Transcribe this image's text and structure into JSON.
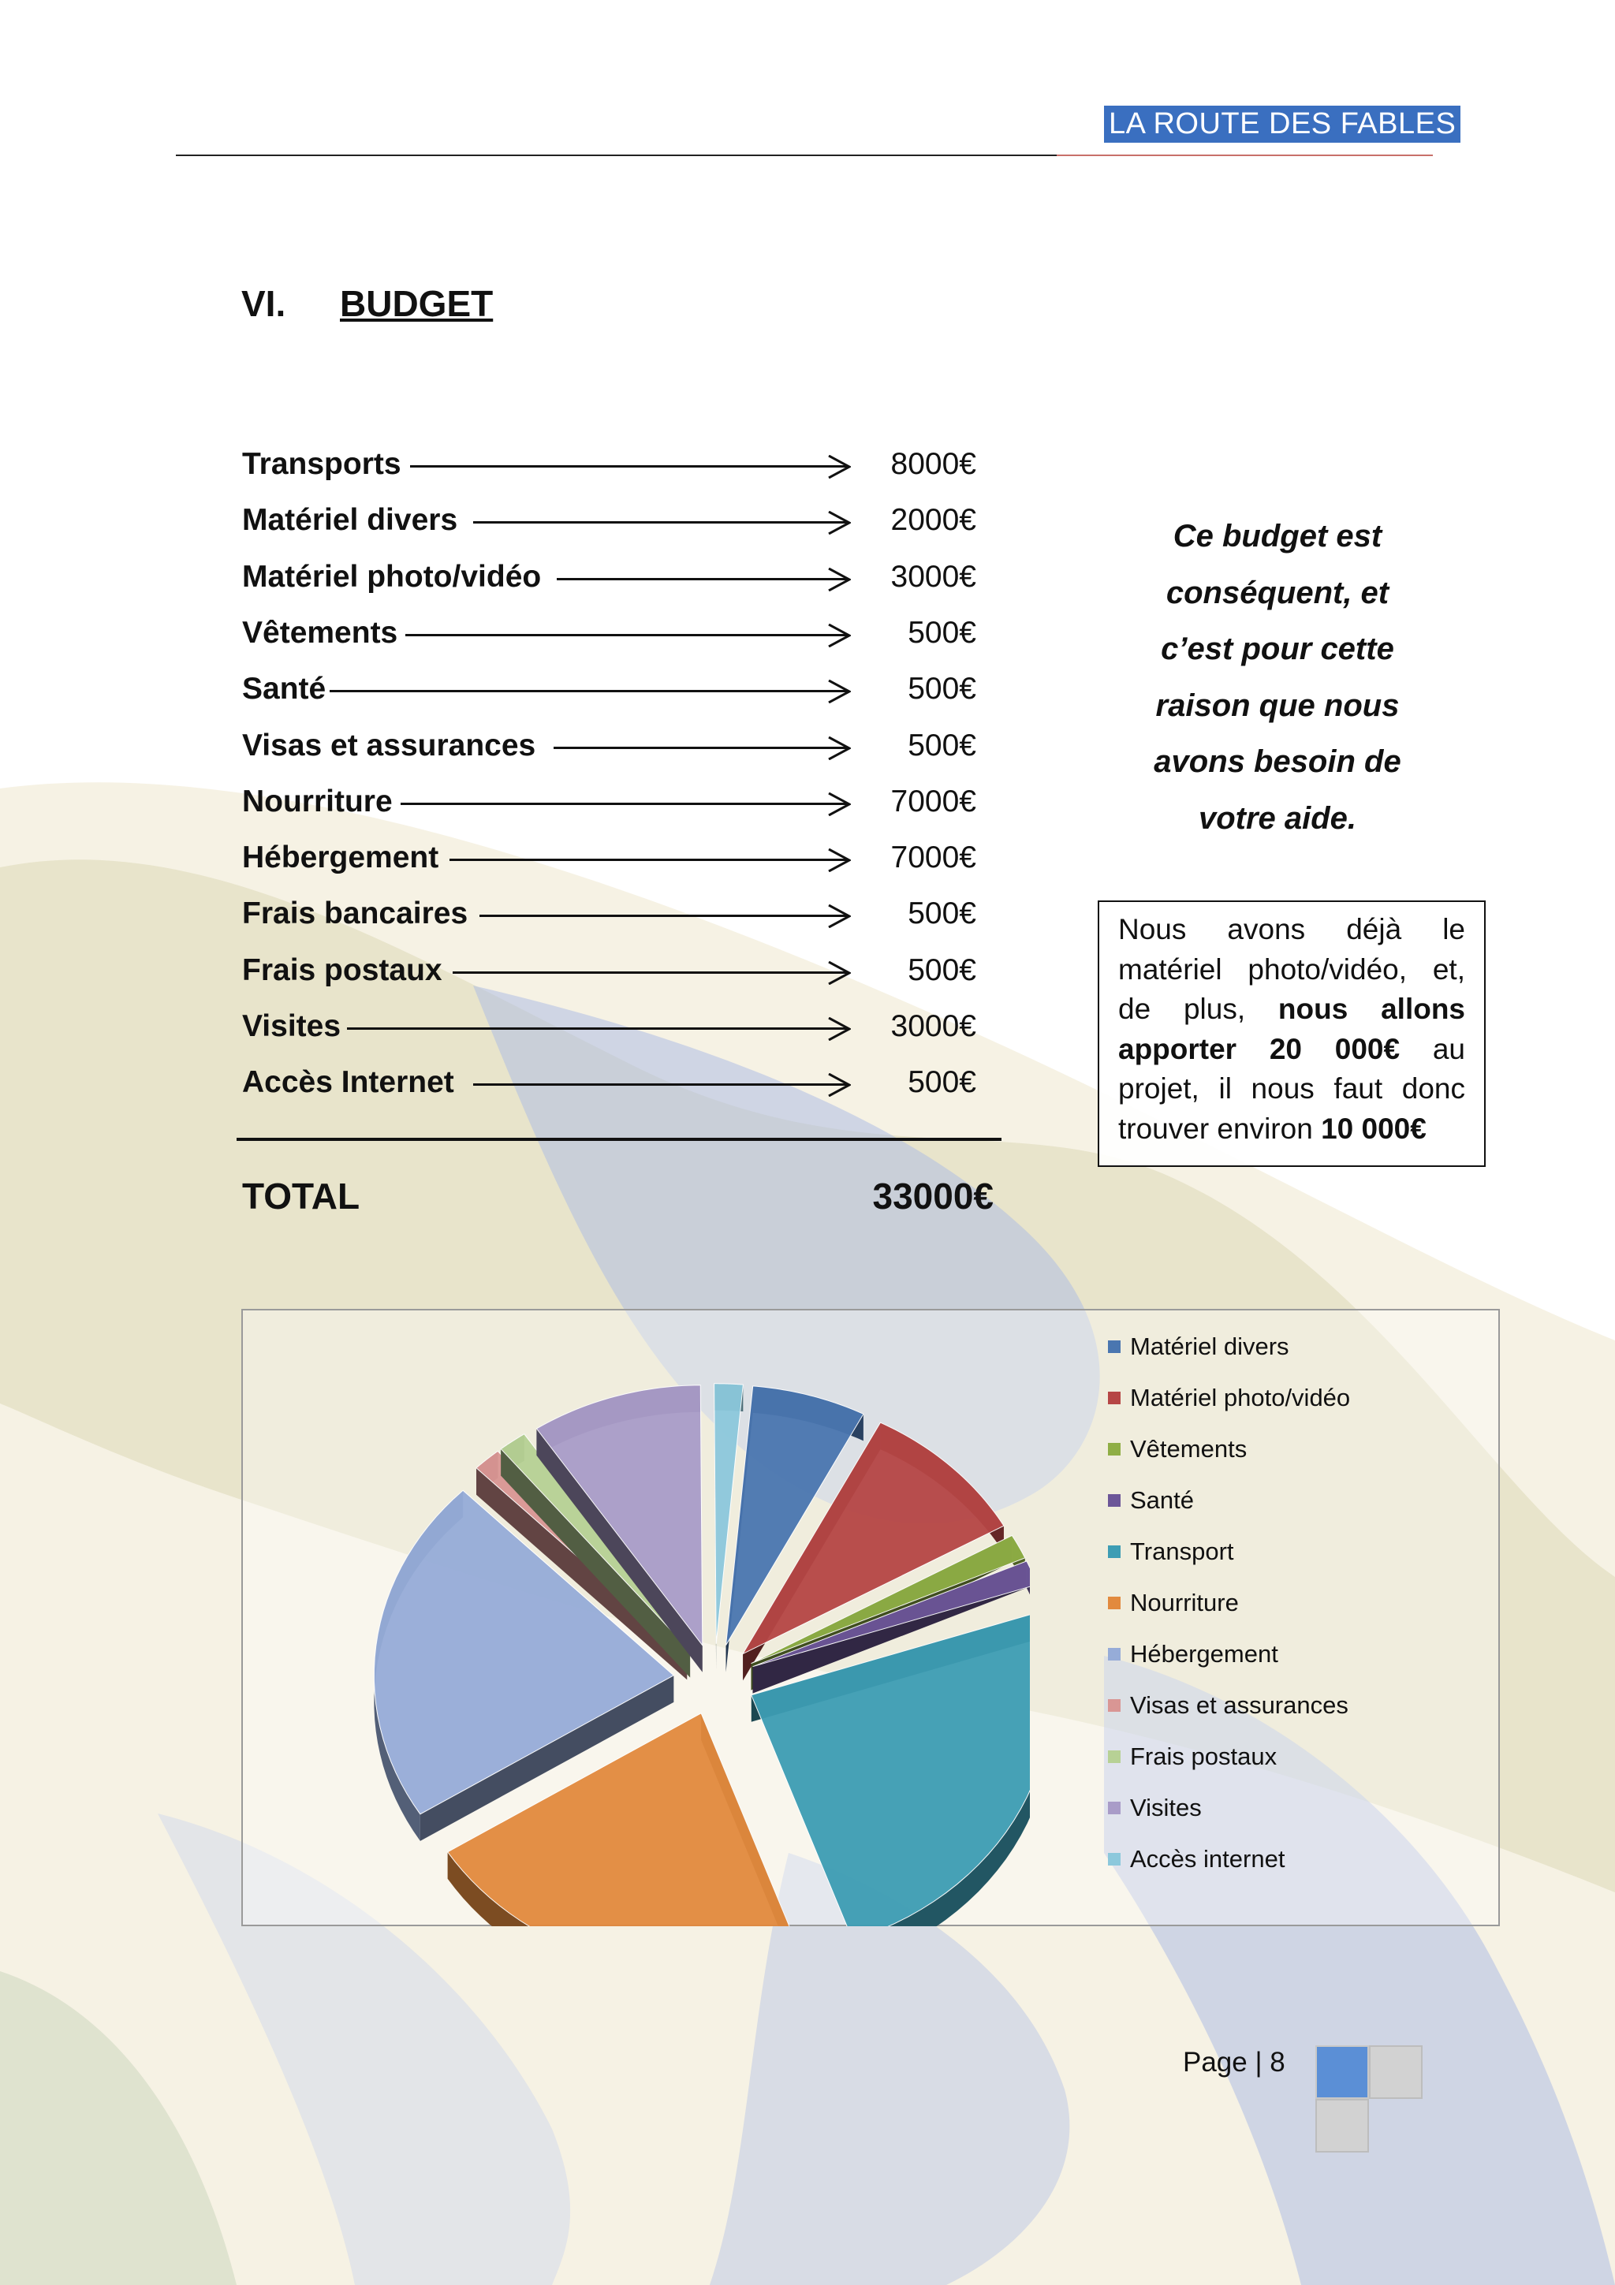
{
  "header": {
    "title": "LA ROUTE  DES  FABLES"
  },
  "section": {
    "number": "VI.",
    "title": "BUDGET"
  },
  "budget_rows": [
    {
      "label": "Transports",
      "value": "8000€"
    },
    {
      "label": "Matériel divers",
      "value": "2000€"
    },
    {
      "label": "Matériel photo/vidéo",
      "value": "3000€"
    },
    {
      "label": "Vêtements",
      "value": "500€"
    },
    {
      "label": "Santé",
      "value": "500€"
    },
    {
      "label": "Visas et assurances",
      "value": "500€"
    },
    {
      "label": "Nourriture",
      "value": "7000€"
    },
    {
      "label": "Hébergement",
      "value": "7000€"
    },
    {
      "label": "Frais bancaires",
      "value": "500€"
    },
    {
      "label": "Frais postaux",
      "value": "500€"
    },
    {
      "label": "Visites",
      "value": "3000€"
    },
    {
      "label": "Accès Internet",
      "value": "500€"
    }
  ],
  "total": {
    "label": "TOTAL",
    "value": "33000€"
  },
  "note": {
    "lines": [
      "Ce budget est",
      "conséquent, et",
      "c’est pour cette",
      "raison que nous",
      "avons besoin de",
      "votre aide."
    ]
  },
  "info_box": {
    "text_1": "Nous avons déjà le matériel photo/vidéo, et, de plus,",
    "bold_1": "nous allons apporter 20 000€",
    "text_2": "au projet, il nous faut donc trouver environ",
    "bold_2": "10 000€"
  },
  "chart_data": {
    "type": "pie",
    "title": "",
    "slices": [
      {
        "label": "Matériel divers",
        "value": 2000,
        "color": "#4a76b0"
      },
      {
        "label": "Matériel photo/vidéo",
        "value": 3000,
        "color": "#b64645"
      },
      {
        "label": "Vêtements",
        "value": 500,
        "color": "#8fae45"
      },
      {
        "label": "Santé",
        "value": 500,
        "color": "#6c5698"
      },
      {
        "label": "Transport",
        "value": 8000,
        "color": "#3d9db4"
      },
      {
        "label": "Nourriture",
        "value": 7000,
        "color": "#e28a3e"
      },
      {
        "label": "Hébergement",
        "value": 7000,
        "color": "#96acd8"
      },
      {
        "label": "Visas et assurances",
        "value": 500,
        "color": "#d99694"
      },
      {
        "label": "Frais postaux",
        "value": 500,
        "color": "#b7d195"
      },
      {
        "label": "Visites",
        "value": 3000,
        "color": "#a99cc8"
      },
      {
        "label": "Accès internet",
        "value": 500,
        "color": "#8cc8dc"
      }
    ],
    "legend_position": "right",
    "exploded": true,
    "style": "3d"
  },
  "footer": {
    "page_label": "Page | 8"
  },
  "colors": {
    "accent": "#3a6fc0",
    "square_light": "#d0d0d0",
    "square_accent": "#5b8fd6"
  }
}
